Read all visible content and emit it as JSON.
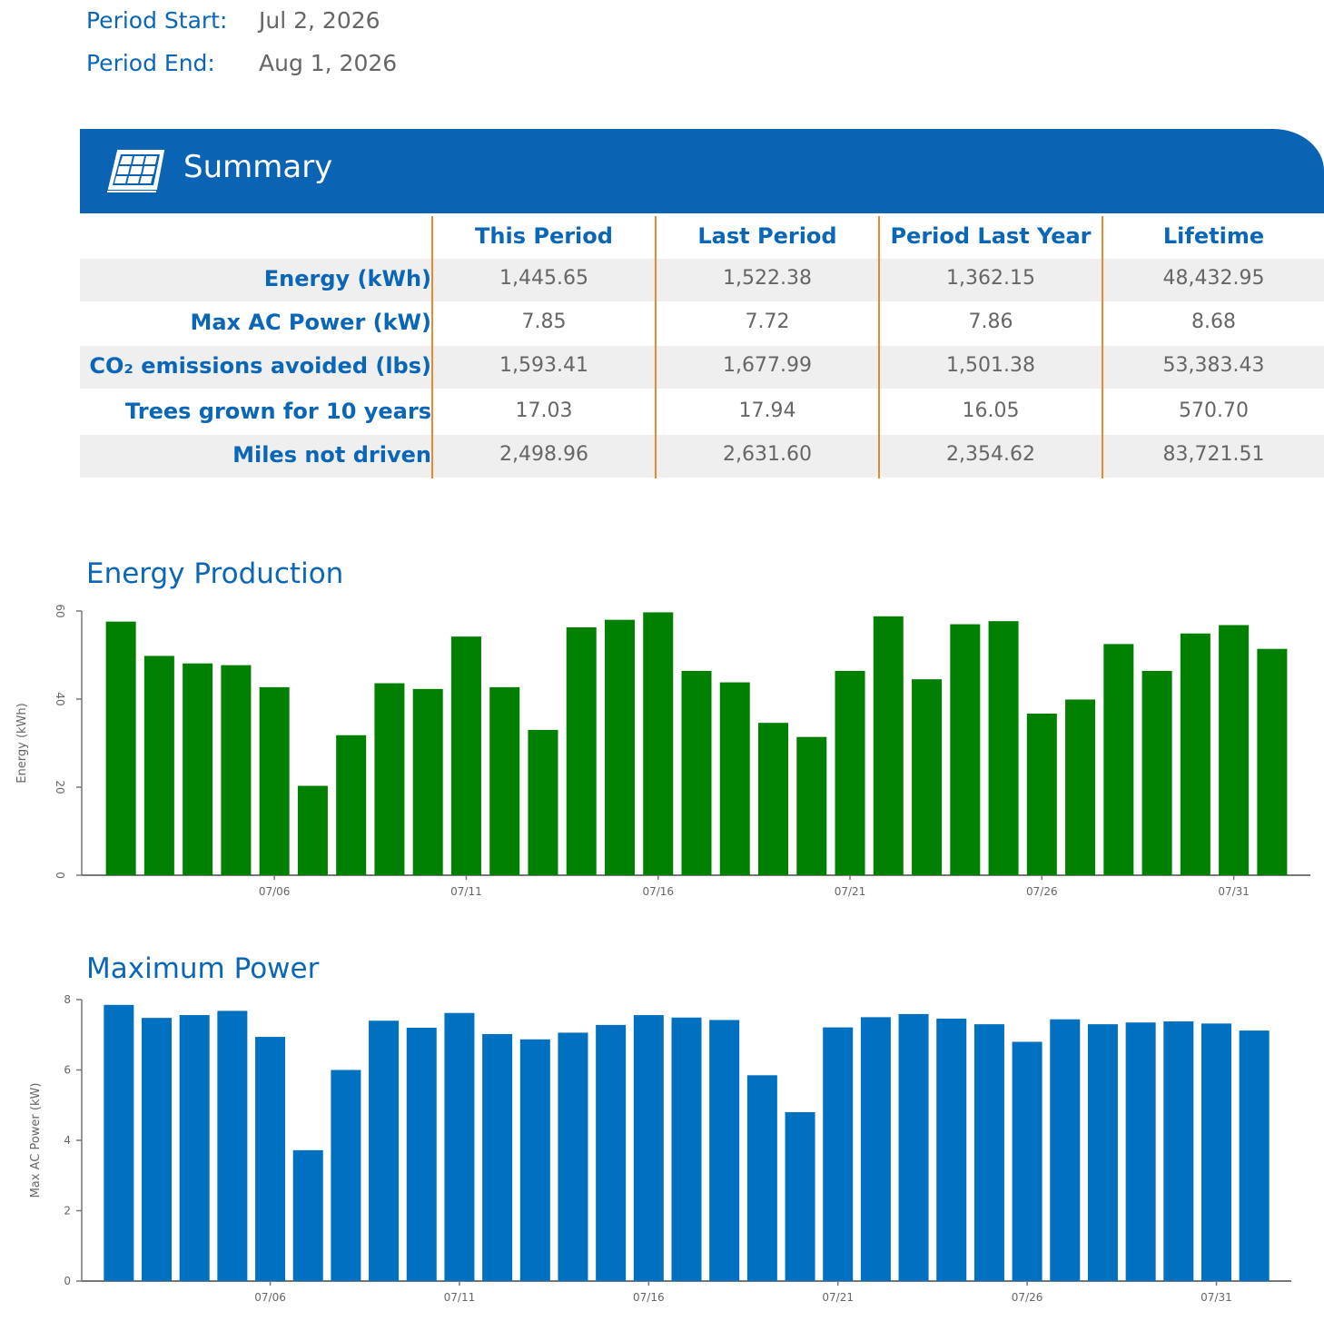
{
  "period": {
    "start_label": "Period Start:",
    "start_value": "Jul 2, 2026",
    "end_label": "Period End:",
    "end_value": "Aug 1, 2026"
  },
  "summary": {
    "title": "Summary",
    "icon": "solar-panel-icon",
    "columns": [
      "This Period",
      "Last Period",
      "Period Last Year",
      "Lifetime"
    ],
    "rows": [
      {
        "label": "Energy (kWh)",
        "values": [
          "1,445.65",
          "1,522.38",
          "1,362.15",
          "48,432.95"
        ]
      },
      {
        "label": "Max AC Power (kW)",
        "values": [
          "7.85",
          "7.72",
          "7.86",
          "8.68"
        ]
      },
      {
        "label": "CO₂ emissions avoided (lbs)",
        "values": [
          "1,593.41",
          "1,677.99",
          "1,501.38",
          "53,383.43"
        ]
      },
      {
        "label": "Trees grown for 10 years",
        "values": [
          "17.03",
          "17.94",
          "16.05",
          "570.70"
        ]
      },
      {
        "label": "Miles not driven",
        "values": [
          "2,498.96",
          "2,631.60",
          "2,354.62",
          "83,721.51"
        ]
      }
    ],
    "colors": {
      "banner": "#0b63b4",
      "header_text": "#0a66b7",
      "divider": "#e8892a"
    }
  },
  "chart_data": [
    {
      "type": "bar",
      "title": "Energy Production",
      "ylabel": "Energy (kWh)",
      "xlabel": "",
      "color": "#008000",
      "x": [
        "07/02",
        "07/03",
        "07/04",
        "07/05",
        "07/06",
        "07/07",
        "07/08",
        "07/09",
        "07/10",
        "07/11",
        "07/12",
        "07/13",
        "07/14",
        "07/15",
        "07/16",
        "07/17",
        "07/18",
        "07/19",
        "07/20",
        "07/21",
        "07/22",
        "07/23",
        "07/24",
        "07/25",
        "07/26",
        "07/27",
        "07/28",
        "07/29",
        "07/30",
        "07/31",
        "08/01"
      ],
      "values": [
        57.6,
        49.8,
        48.1,
        47.7,
        42.7,
        20.3,
        31.8,
        43.6,
        42.3,
        54.2,
        42.7,
        33.0,
        56.3,
        58.0,
        59.7,
        46.4,
        43.8,
        34.6,
        31.4,
        46.4,
        58.8,
        44.5,
        57.0,
        57.7,
        36.7,
        39.9,
        52.5,
        46.4,
        54.9,
        56.8,
        51.4
      ],
      "tick_labels": [
        "07/06",
        "07/11",
        "07/16",
        "07/21",
        "07/26",
        "07/31"
      ],
      "yticks": [
        0,
        20,
        40,
        60
      ],
      "ylim": [
        0,
        60
      ],
      "grid": false,
      "legend": "none"
    },
    {
      "type": "bar",
      "title": "Maximum Power",
      "ylabel": "Max AC Power (kW)",
      "xlabel": "",
      "color": "#0070c0",
      "x": [
        "07/02",
        "07/03",
        "07/04",
        "07/05",
        "07/06",
        "07/07",
        "07/08",
        "07/09",
        "07/10",
        "07/11",
        "07/12",
        "07/13",
        "07/14",
        "07/15",
        "07/16",
        "07/17",
        "07/18",
        "07/19",
        "07/20",
        "07/21",
        "07/22",
        "07/23",
        "07/24",
        "07/25",
        "07/26",
        "07/27",
        "07/28",
        "07/29",
        "07/30",
        "07/31",
        "08/01"
      ],
      "values": [
        7.85,
        7.48,
        7.56,
        7.68,
        6.94,
        3.72,
        6.0,
        7.4,
        7.2,
        7.62,
        7.02,
        6.87,
        7.06,
        7.28,
        7.56,
        7.49,
        7.42,
        5.85,
        4.8,
        7.21,
        7.5,
        7.59,
        7.46,
        7.3,
        6.8,
        7.44,
        7.3,
        7.35,
        7.38,
        7.32,
        7.12
      ],
      "tick_labels": [
        "07/06",
        "07/11",
        "07/16",
        "07/21",
        "07/26",
        "07/31"
      ],
      "yticks": [
        0,
        2,
        4,
        6,
        8
      ],
      "ylim": [
        0,
        8
      ],
      "grid": false,
      "legend": "none"
    }
  ]
}
